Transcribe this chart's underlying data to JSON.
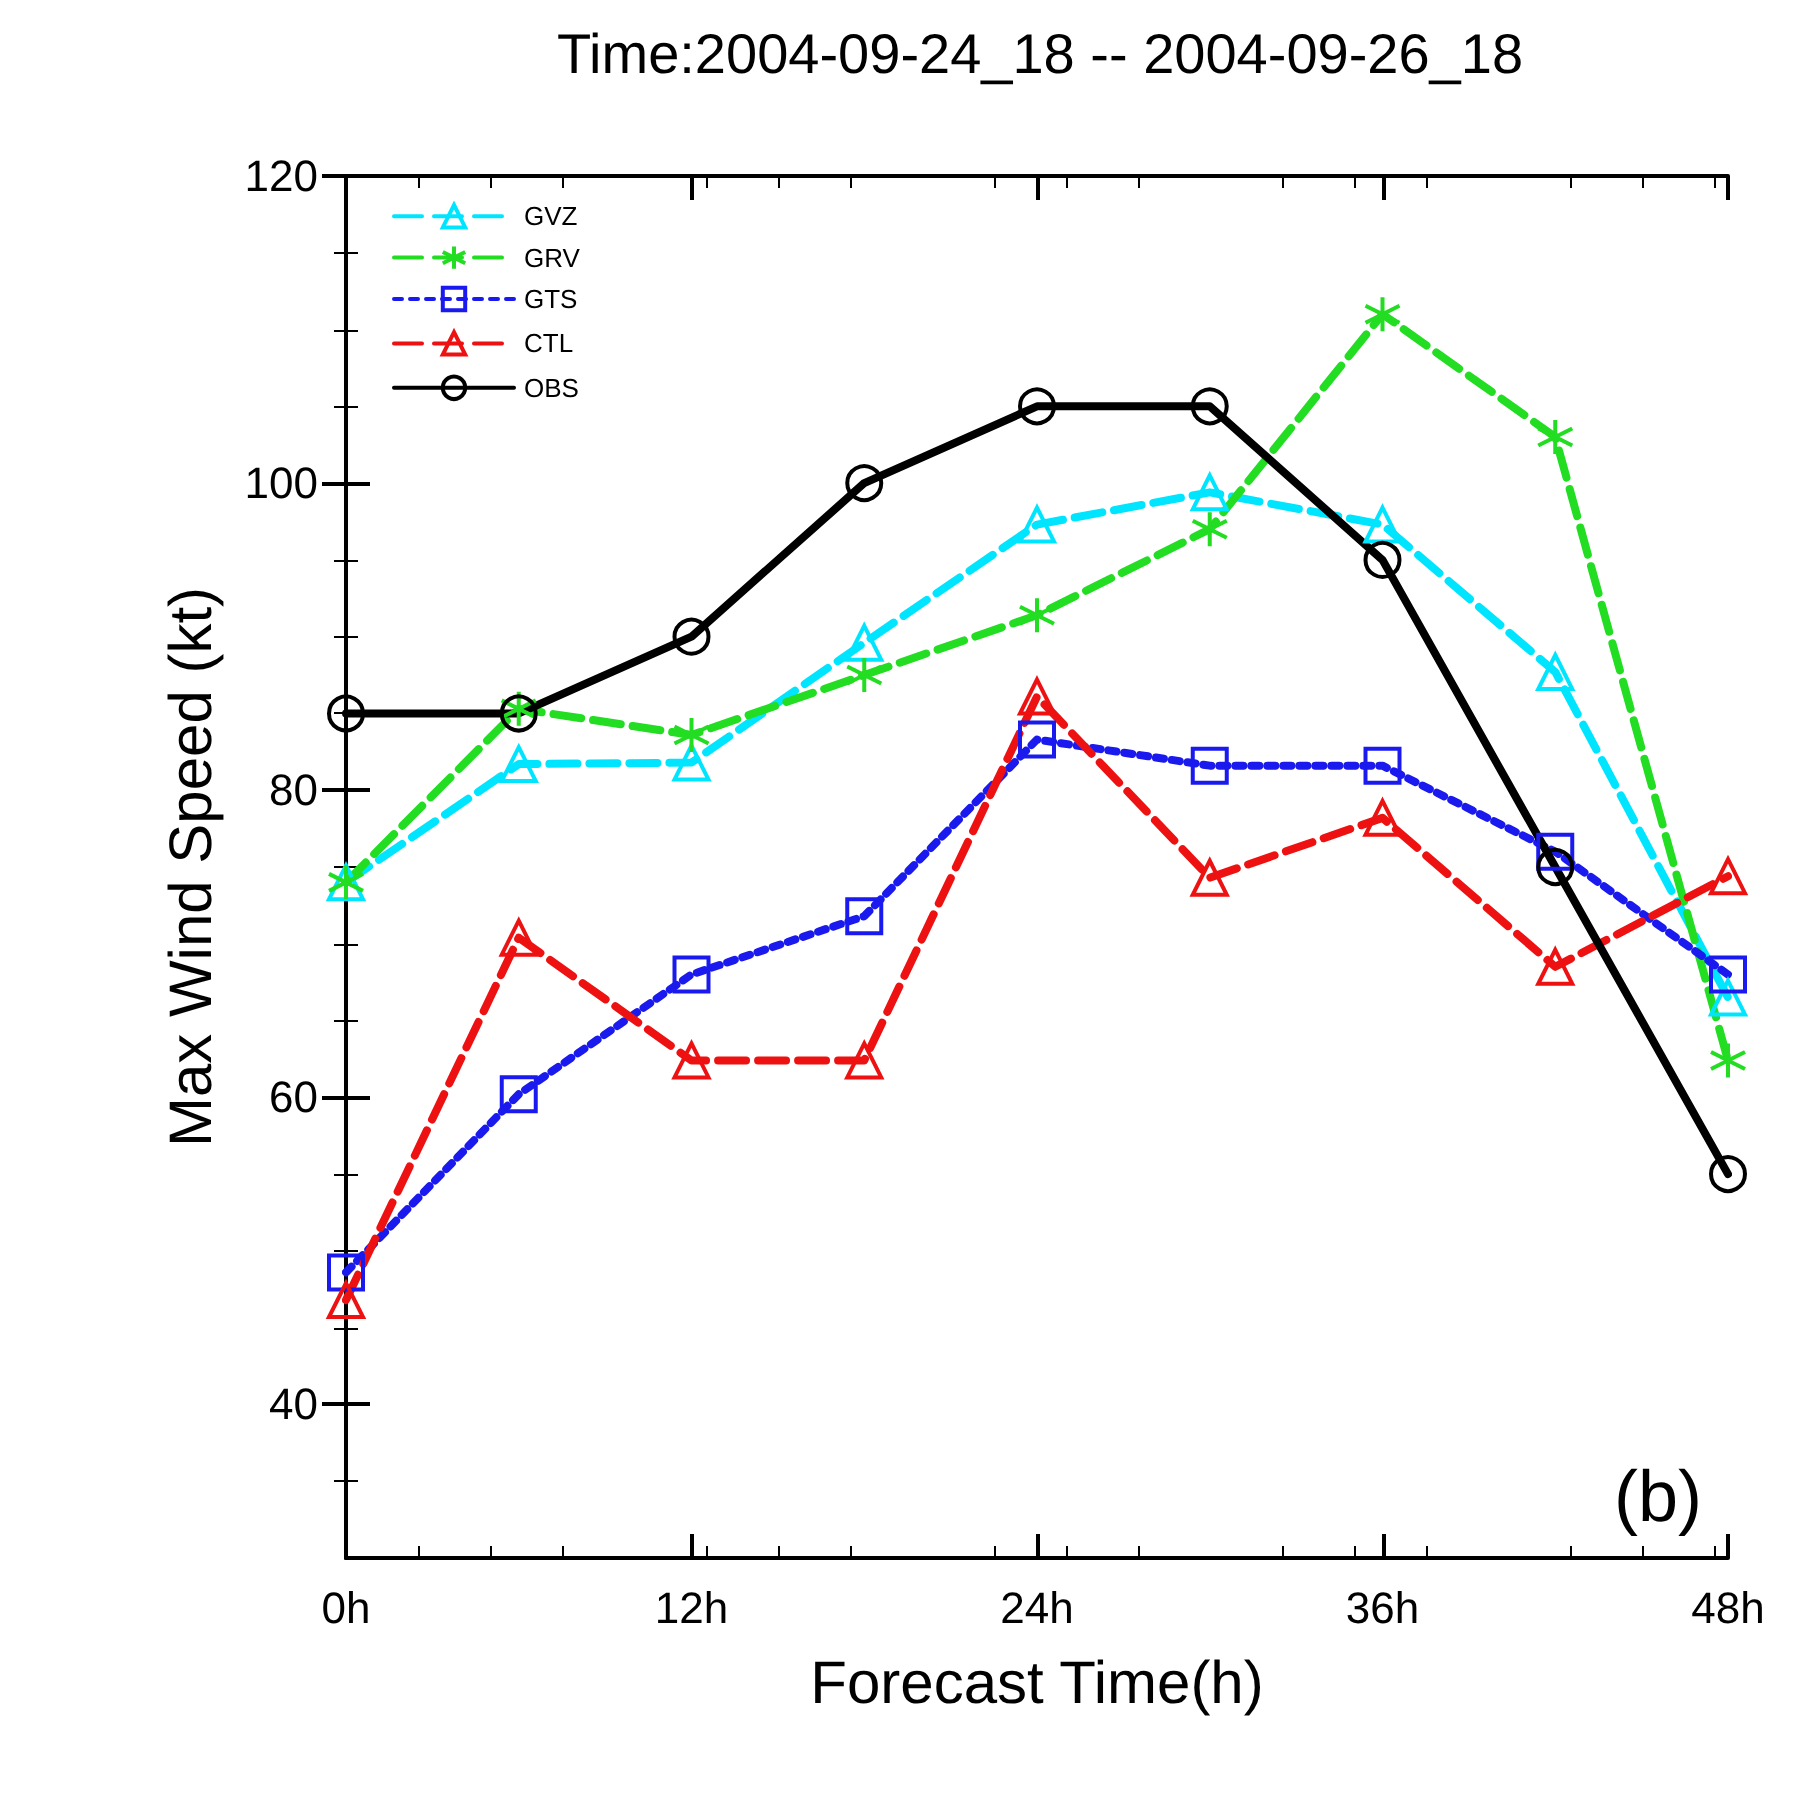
{
  "chart_data": {
    "type": "line",
    "title": "Time:2004-09-24_18 -- 2004-09-26_18",
    "xlabel": "Forecast Time(h)",
    "ylabel": "Max Wind Speed (kt)",
    "x": [
      0,
      6,
      12,
      18,
      24,
      30,
      36,
      42,
      48
    ],
    "xlim": [
      0,
      48
    ],
    "xticks": [
      {
        "value": 0,
        "label": "0h"
      },
      {
        "value": 12,
        "label": "12h"
      },
      {
        "value": 24,
        "label": "24h"
      },
      {
        "value": 36,
        "label": "36h"
      },
      {
        "value": 48,
        "label": "48h"
      }
    ],
    "ylim": [
      30,
      120
    ],
    "yticks": [
      40,
      60,
      80,
      100,
      120
    ],
    "grid": false,
    "legend": "top left",
    "annotations": [
      "(b)"
    ],
    "series": [
      {
        "name": "GVZ",
        "color": "#00e5ff",
        "marker": "triangle",
        "line_style": "dashed",
        "values": [
          74,
          81.7,
          81.8,
          89.6,
          97.3,
          99.4,
          97.3,
          87.7,
          66.5
        ]
      },
      {
        "name": "GRV",
        "color": "#22dd22",
        "marker": "cross",
        "line_style": "dashed",
        "values": [
          74,
          85.3,
          83.6,
          87.5,
          91.4,
          97,
          111,
          103,
          62.4
        ]
      },
      {
        "name": "GTS",
        "color": "#1a1aee",
        "marker": "square",
        "line_style": "dotted",
        "values": [
          48.6,
          60.2,
          68,
          71.8,
          83.3,
          81.6,
          81.6,
          76,
          68
        ]
      },
      {
        "name": "CTL",
        "color": "#ee1111",
        "marker": "triangle",
        "line_style": "dashed",
        "values": [
          46.8,
          70.4,
          62.4,
          62.4,
          86.1,
          74.3,
          78.2,
          68.5,
          74.4
        ]
      },
      {
        "name": "OBS",
        "color": "#000000",
        "marker": "circle",
        "line_style": "solid",
        "values": [
          85,
          85,
          90,
          100,
          105,
          105,
          95,
          75,
          55
        ]
      }
    ]
  }
}
